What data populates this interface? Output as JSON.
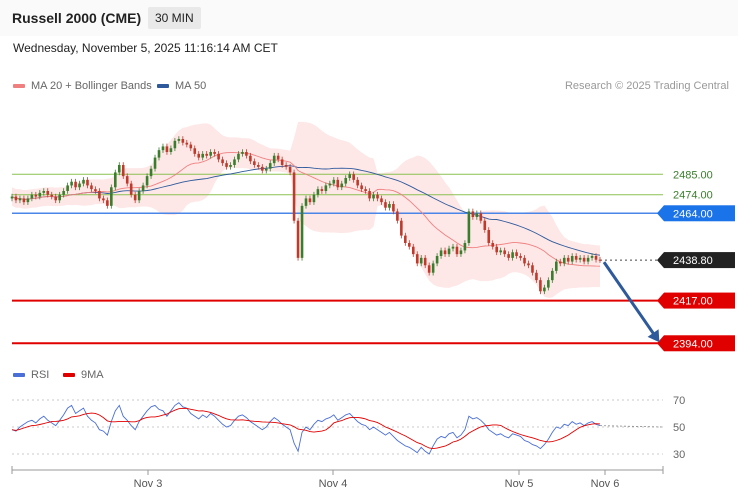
{
  "header": {
    "title": "Russell 2000 (CME)",
    "timeframe": "30 MIN",
    "datetime": "Wednesday, November 5, 2025 11:16:14 AM CET"
  },
  "legend": {
    "ma20": "MA 20 + Bollinger Bands",
    "ma50": "MA 50",
    "credit": "Research © 2025 Trading Central"
  },
  "rsi_legend": {
    "rsi": "RSI",
    "ma9": "9MA"
  },
  "colors": {
    "ma20": "#f08080",
    "ma50": "#2e5a9c",
    "bands_fill": "#fde3e3",
    "up": "#3a7d2c",
    "down": "#c0392b",
    "support": "#e00000",
    "resistance_green": "#8cc152",
    "pivot_blue": "#4a86e8",
    "rsi": "#4a6fd6",
    "rsi_ma": "#e00000"
  },
  "chart_data": [
    {
      "type": "candlestick",
      "title": "Russell 2000 (CME)",
      "timeframe": "30 MIN",
      "x_ticks": [
        "Nov 3",
        "Nov 4",
        "Nov 5",
        "Nov 6"
      ],
      "ylim": [
        2385,
        2525
      ],
      "levels": [
        {
          "label": "2485.00",
          "value": 2485.0,
          "style": "resistance"
        },
        {
          "label": "2474.00",
          "value": 2474.0,
          "style": "resistance"
        },
        {
          "label": "2464.00",
          "value": 2464.0,
          "style": "pivot"
        },
        {
          "label": "2438.80",
          "value": 2438.8,
          "style": "last"
        },
        {
          "label": "2417.00",
          "value": 2417.0,
          "style": "support"
        },
        {
          "label": "2394.00",
          "value": 2394.0,
          "style": "support"
        }
      ],
      "close": [
        2473,
        2471,
        2472,
        2470,
        2472,
        2474,
        2473,
        2475,
        2476,
        2474,
        2473,
        2471,
        2474,
        2476,
        2479,
        2481,
        2478,
        2480,
        2482,
        2479,
        2477,
        2476,
        2472,
        2471,
        2468,
        2478,
        2486,
        2490,
        2484,
        2480,
        2474,
        2471,
        2476,
        2479,
        2484,
        2488,
        2494,
        2498,
        2500,
        2497,
        2499,
        2503,
        2504,
        2502,
        2501,
        2499,
        2496,
        2494,
        2496,
        2495,
        2497,
        2496,
        2493,
        2491,
        2489,
        2490,
        2493,
        2496,
        2497,
        2495,
        2492,
        2490,
        2489,
        2487,
        2488,
        2491,
        2495,
        2493,
        2490,
        2489,
        2486,
        2460,
        2440,
        2468,
        2472,
        2470,
        2474,
        2477,
        2476,
        2479,
        2480,
        2482,
        2478,
        2480,
        2483,
        2485,
        2482,
        2479,
        2477,
        2476,
        2472,
        2474,
        2472,
        2470,
        2467,
        2469,
        2465,
        2460,
        2452,
        2448,
        2446,
        2442,
        2437,
        2440,
        2436,
        2432,
        2437,
        2441,
        2444,
        2442,
        2445,
        2446,
        2442,
        2444,
        2448,
        2465,
        2462,
        2464,
        2460,
        2455,
        2448,
        2446,
        2443,
        2444,
        2442,
        2440,
        2443,
        2441,
        2440,
        2437,
        2436,
        2432,
        2428,
        2422,
        2424,
        2428,
        2433,
        2438,
        2437,
        2440,
        2438,
        2441,
        2439,
        2440,
        2438,
        2440,
        2441,
        2439,
        2438.8
      ],
      "rsi": [
        48,
        47,
        50,
        52,
        54,
        55,
        53,
        56,
        58,
        55,
        53,
        51,
        55,
        59,
        64,
        66,
        60,
        62,
        64,
        58,
        55,
        53,
        48,
        47,
        44,
        54,
        62,
        66,
        58,
        55,
        51,
        48,
        54,
        58,
        62,
        65,
        66,
        63,
        62,
        58,
        62,
        66,
        68,
        65,
        64,
        60,
        58,
        56,
        59,
        57,
        60,
        58,
        55,
        52,
        50,
        51,
        55,
        58,
        59,
        57,
        54,
        52,
        50,
        48,
        50,
        54,
        57,
        55,
        52,
        50,
        48,
        38,
        32,
        46,
        50,
        48,
        52,
        55,
        54,
        56,
        57,
        59,
        55,
        57,
        59,
        60,
        57,
        54,
        52,
        51,
        48,
        50,
        48,
        46,
        44,
        46,
        43,
        40,
        38,
        36,
        35,
        33,
        31,
        35,
        32,
        30,
        36,
        41,
        43,
        42,
        45,
        46,
        42,
        44,
        48,
        58,
        56,
        57,
        55,
        52,
        48,
        46,
        44,
        45,
        43,
        42,
        45,
        44,
        43,
        40,
        39,
        37,
        36,
        34,
        37,
        41,
        46,
        50,
        49,
        52,
        51,
        54,
        52,
        53,
        51,
        53,
        54,
        52,
        51
      ]
    }
  ]
}
